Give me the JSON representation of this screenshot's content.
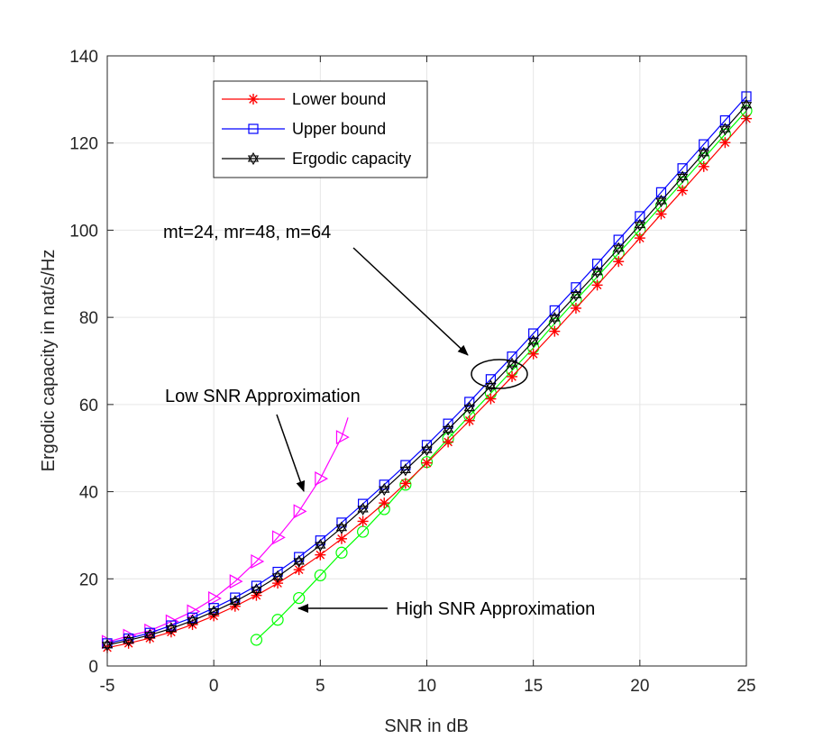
{
  "chart_data": {
    "type": "line",
    "title": "",
    "xlabel": "SNR in dB",
    "ylabel": "Ergodic capacity in nat/s/Hz",
    "xlim": [
      -5,
      25
    ],
    "ylim": [
      0,
      140
    ],
    "xticks": [
      -5,
      0,
      5,
      10,
      15,
      20,
      25
    ],
    "yticks": [
      0,
      20,
      40,
      60,
      80,
      100,
      120,
      140
    ],
    "grid": true,
    "legend_position": "top-left",
    "series": [
      {
        "name": "Lower bound",
        "color": "#ff0000",
        "marker": "asterisk",
        "in_legend": true,
        "x": [
          -5,
          -4,
          -3,
          -2,
          -1,
          0,
          1,
          2,
          3,
          4,
          5,
          6,
          7,
          8,
          9,
          10,
          11,
          12,
          13,
          14,
          15,
          16,
          17,
          18,
          19,
          20,
          21,
          22,
          23,
          24,
          25
        ],
        "y": [
          4.2,
          5.2,
          6.4,
          7.8,
          9.5,
          11.5,
          13.7,
          16.2,
          19.0,
          22.1,
          25.5,
          29.2,
          33.2,
          37.4,
          41.9,
          46.6,
          51.4,
          56.3,
          61.3,
          66.4,
          71.6,
          76.8,
          82.1,
          87.4,
          92.8,
          98.2,
          103.7,
          109.1,
          114.6,
          120.1,
          125.6
        ]
      },
      {
        "name": "Upper bound",
        "color": "#0000ff",
        "marker": "square",
        "in_legend": true,
        "x": [
          -5,
          -4,
          -3,
          -2,
          -1,
          0,
          1,
          2,
          3,
          4,
          5,
          6,
          7,
          8,
          9,
          10,
          11,
          12,
          13,
          14,
          15,
          16,
          17,
          18,
          19,
          20,
          21,
          22,
          23,
          24,
          25
        ],
        "y": [
          5.2,
          6.3,
          7.6,
          9.3,
          11.1,
          13.3,
          15.7,
          18.4,
          21.6,
          25.0,
          28.8,
          32.9,
          37.2,
          41.6,
          46.1,
          50.7,
          55.6,
          60.6,
          65.8,
          71.0,
          76.3,
          81.6,
          86.9,
          92.3,
          97.8,
          103.2,
          108.7,
          114.2,
          119.7,
          125.2,
          130.7
        ]
      },
      {
        "name": "Ergodic capacity",
        "color": "#000000",
        "marker": "hexagram",
        "in_legend": true,
        "x": [
          -5,
          -4,
          -3,
          -2,
          -1,
          0,
          1,
          2,
          3,
          4,
          5,
          6,
          7,
          8,
          9,
          10,
          11,
          12,
          13,
          14,
          15,
          16,
          17,
          18,
          19,
          20,
          21,
          22,
          23,
          24,
          25
        ],
        "y": [
          4.8,
          5.9,
          7.1,
          8.6,
          10.4,
          12.5,
          14.8,
          17.5,
          20.5,
          24.0,
          27.7,
          31.7,
          36.0,
          40.5,
          45.0,
          49.6,
          54.3,
          59.2,
          64.2,
          69.3,
          74.5,
          79.8,
          85.1,
          90.4,
          95.8,
          101.2,
          106.7,
          112.2,
          117.7,
          123.2,
          128.7
        ]
      },
      {
        "name": "Low SNR Approximation",
        "color": "#ff00ff",
        "marker": "triangle-right",
        "in_legend": false,
        "x": [
          -5,
          -4,
          -3,
          -2,
          -1,
          0,
          1,
          2,
          3,
          4,
          5,
          6,
          6.3
        ],
        "y": [
          5.5,
          6.9,
          8.1,
          10.2,
          12.5,
          15.5,
          19.4,
          24.0,
          29.5,
          35.5,
          43.0,
          52.5,
          57.0
        ]
      },
      {
        "name": "High SNR Approximation",
        "color": "#00ff00",
        "marker": "circle",
        "in_legend": false,
        "x": [
          2,
          3,
          4,
          5,
          6,
          7,
          8,
          9,
          10,
          11,
          12,
          13,
          14,
          15,
          16,
          17,
          18,
          19,
          20,
          21,
          22,
          23,
          24,
          25
        ],
        "y": [
          6.0,
          10.6,
          15.6,
          20.8,
          26.0,
          30.8,
          36.0,
          41.6,
          46.8,
          52.2,
          57.4,
          62.6,
          67.8,
          73.0,
          78.6,
          84.0,
          89.3,
          94.7,
          100.1,
          105.6,
          111.0,
          116.5,
          122.0,
          127.4
        ]
      }
    ],
    "annotations": [
      {
        "id": "params",
        "text": "mt=24, mr=48, m=64"
      },
      {
        "id": "low",
        "text": "Low SNR Approximation"
      },
      {
        "id": "high",
        "text": "High SNR Approximation"
      }
    ]
  }
}
